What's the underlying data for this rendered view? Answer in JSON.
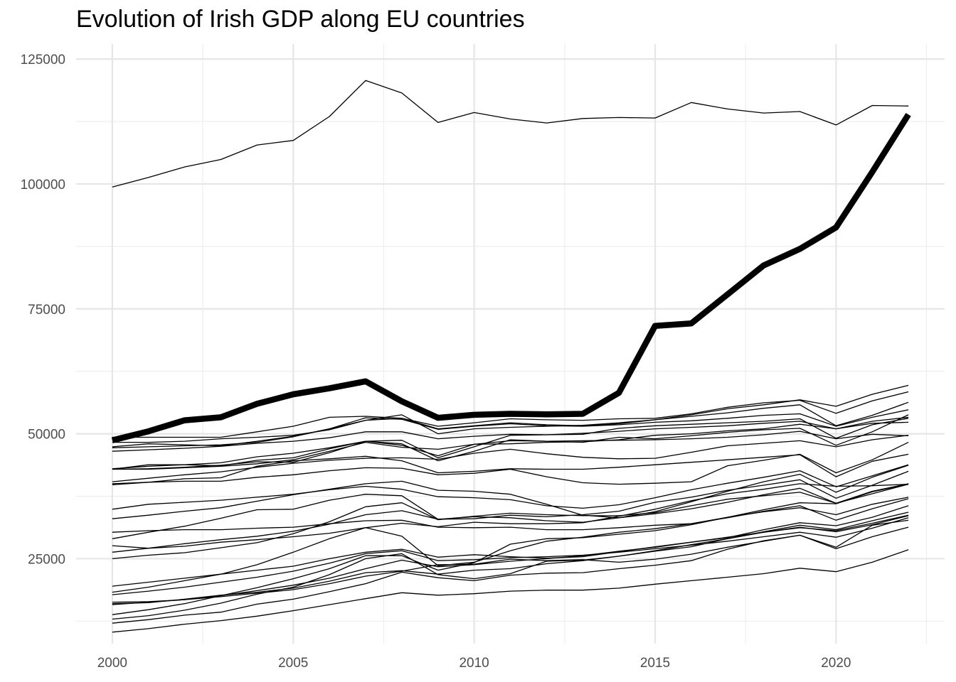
{
  "chart_data": {
    "type": "line",
    "title": "Evolution of Irish GDP along EU countries",
    "xlabel": "",
    "ylabel": "",
    "xlim": [
      1999,
      2023
    ],
    "ylim": [
      8000,
      128000
    ],
    "x_ticks": [
      2000,
      2005,
      2010,
      2015,
      2020
    ],
    "y_ticks": [
      25000,
      50000,
      75000,
      100000,
      125000
    ],
    "grid": true,
    "legend": "none",
    "line_color": "#000000",
    "x": [
      2000,
      2001,
      2002,
      2003,
      2004,
      2005,
      2006,
      2007,
      2008,
      2009,
      2010,
      2011,
      2012,
      2013,
      2014,
      2015,
      2016,
      2017,
      2018,
      2019,
      2020,
      2021,
      2022
    ],
    "highlight_series": {
      "values": [
        48700,
        50500,
        52700,
        53300,
        56000,
        57900,
        59100,
        60500,
        56500,
        53200,
        53800,
        54000,
        53900,
        54000,
        58200,
        71600,
        72100,
        77900,
        83700,
        87000,
        91300,
        102400,
        113900
      ]
    },
    "series": [
      {
        "values": [
          99400,
          101300,
          103400,
          104900,
          107800,
          108700,
          113500,
          120700,
          118200,
          112300,
          114300,
          113000,
          112200,
          113100,
          113300,
          113200,
          116300,
          115000,
          114200,
          114500,
          111800,
          115700,
          115600
        ]
      },
      {
        "values": [
          49300,
          49300,
          49300,
          49300,
          50400,
          51500,
          53300,
          53500,
          53100,
          51000,
          51600,
          52200,
          51800,
          51600,
          52000,
          52800,
          53800,
          55000,
          55800,
          56800,
          55500,
          57900,
          59700
        ]
      },
      {
        "values": [
          48300,
          48300,
          48500,
          49000,
          49300,
          49700,
          50800,
          52700,
          53100,
          51500,
          52200,
          53000,
          52800,
          52700,
          53000,
          53100,
          54000,
          55300,
          56200,
          56700,
          54100,
          56600,
          58400
        ]
      },
      {
        "values": [
          47400,
          48000,
          47800,
          47600,
          48500,
          49500,
          51000,
          52700,
          53800,
          50000,
          51000,
          51300,
          51500,
          51700,
          52200,
          52800,
          53500,
          54200,
          55100,
          55800,
          51600,
          53700,
          56300
        ]
      },
      {
        "values": [
          47200,
          47400,
          47600,
          47800,
          48300,
          49400,
          51000,
          53200,
          52900,
          50900,
          51500,
          52000,
          51600,
          51500,
          51800,
          52300,
          52600,
          53100,
          53700,
          54000,
          51500,
          53300,
          54800
        ]
      },
      {
        "values": [
          46500,
          46800,
          47100,
          47500,
          48100,
          48500,
          49200,
          50400,
          50400,
          49000,
          49500,
          49900,
          49800,
          50100,
          50500,
          51000,
          51300,
          51600,
          52100,
          52500,
          51000,
          52500,
          53300
        ]
      },
      {
        "values": [
          43000,
          43500,
          43800,
          44200,
          45400,
          46100,
          47200,
          48500,
          48700,
          45200,
          47400,
          49700,
          49800,
          49900,
          51100,
          51600,
          51900,
          52200,
          52500,
          53000,
          49100,
          51800,
          53100
        ]
      },
      {
        "values": [
          42900,
          43800,
          43800,
          43600,
          44700,
          45200,
          47000,
          48500,
          47700,
          45600,
          47900,
          48000,
          48300,
          48400,
          48800,
          49700,
          50000,
          50600,
          51000,
          51900,
          51000,
          52100,
          52300
        ]
      },
      {
        "values": [
          42900,
          43000,
          43300,
          43700,
          44400,
          44300,
          46200,
          48500,
          48000,
          44600,
          46500,
          48800,
          48500,
          48300,
          49300,
          49000,
          49600,
          50300,
          50800,
          51100,
          47700,
          50400,
          53800
        ]
      },
      {
        "values": [
          42900,
          42900,
          43200,
          43500,
          44000,
          44800,
          46500,
          48300,
          47300,
          46900,
          47900,
          48600,
          48500,
          48600,
          48700,
          48800,
          49000,
          49300,
          49800,
          50500,
          49000,
          49900,
          49600
        ]
      },
      {
        "values": [
          40000,
          40300,
          41000,
          41200,
          43500,
          44600,
          45000,
          45500,
          44600,
          42200,
          42500,
          43000,
          42900,
          42900,
          43300,
          43800,
          44300,
          44800,
          45300,
          45800,
          41400,
          44500,
          45900
        ]
      },
      {
        "values": [
          40400,
          41100,
          41800,
          42400,
          43300,
          44100,
          44700,
          45100,
          45200,
          44900,
          46100,
          46900,
          46000,
          45300,
          45000,
          45100,
          46300,
          47600,
          48100,
          48600,
          47400,
          48800,
          49700
        ]
      },
      {
        "values": [
          39800,
          40300,
          40500,
          40500,
          41300,
          41800,
          42600,
          43200,
          43100,
          41800,
          42100,
          42900,
          41400,
          40200,
          39900,
          40100,
          40400,
          43600,
          44700,
          45900,
          42200,
          44800,
          48300
        ]
      },
      {
        "values": [
          34900,
          35900,
          36300,
          36700,
          37300,
          37900,
          38800,
          39500,
          38900,
          37400,
          37200,
          36800,
          35600,
          35100,
          35800,
          37200,
          38800,
          40100,
          41300,
          42600,
          39400,
          41600,
          43800
        ]
      },
      {
        "values": [
          33000,
          33700,
          34500,
          35200,
          36500,
          37800,
          38900,
          40000,
          40500,
          38700,
          38500,
          37900,
          35900,
          33700,
          33200,
          34400,
          36400,
          38500,
          40400,
          41900,
          38300,
          41300,
          43700
        ]
      },
      {
        "values": [
          30300,
          30600,
          30800,
          30800,
          31100,
          31300,
          32000,
          32600,
          32700,
          31300,
          31200,
          31300,
          30800,
          30800,
          31200,
          31700,
          32000,
          33300,
          34800,
          36200,
          36000,
          38400,
          39900
        ]
      },
      {
        "values": [
          29000,
          30300,
          31500,
          33100,
          34800,
          34900,
          36700,
          37900,
          37600,
          32900,
          33000,
          33700,
          33400,
          33800,
          34500,
          36300,
          37300,
          38700,
          39700,
          40800,
          37100,
          39700,
          42500
        ]
      },
      {
        "values": [
          27600,
          27100,
          27500,
          28300,
          28800,
          29400,
          30100,
          31200,
          32100,
          31400,
          32300,
          32000,
          32000,
          32200,
          33500,
          34900,
          36600,
          38000,
          38900,
          40000,
          39500,
          39600,
          39900
        ]
      },
      {
        "values": [
          26300,
          27100,
          28000,
          28800,
          29500,
          30500,
          31900,
          33800,
          34600,
          32900,
          33400,
          33200,
          32600,
          32300,
          33200,
          34000,
          35000,
          36300,
          37800,
          39100,
          36100,
          38000,
          39900
        ]
      },
      {
        "values": [
          25000,
          25700,
          26200,
          27200,
          28200,
          30000,
          32400,
          35400,
          36200,
          32800,
          33500,
          34100,
          33800,
          33600,
          33600,
          34200,
          35600,
          36900,
          37600,
          38300,
          36100,
          38500,
          40000
        ]
      },
      {
        "values": [
          19500,
          20300,
          21100,
          21900,
          22700,
          23500,
          25000,
          26300,
          26900,
          25300,
          25800,
          25400,
          25100,
          25400,
          26400,
          27400,
          28300,
          29200,
          30800,
          32200,
          31600,
          33300,
          35600
        ]
      },
      {
        "values": [
          18300,
          19300,
          20600,
          21900,
          23800,
          26300,
          29000,
          31200,
          29500,
          23600,
          24300,
          26600,
          28500,
          29300,
          30300,
          31000,
          32000,
          33200,
          34500,
          35600,
          32700,
          35000,
          37000
        ]
      },
      {
        "values": [
          17800,
          18500,
          19300,
          20300,
          21300,
          22500,
          24100,
          26000,
          26600,
          24600,
          24800,
          25200,
          25400,
          25700,
          26300,
          27000,
          27700,
          28500,
          29400,
          30300,
          29300,
          31100,
          33200
        ]
      },
      {
        "values": [
          16300,
          16400,
          16800,
          17600,
          18600,
          19700,
          21100,
          23000,
          24700,
          23400,
          23800,
          24500,
          25000,
          25600,
          26500,
          27300,
          28300,
          29300,
          30300,
          31200,
          30600,
          32100,
          33700
        ]
      },
      {
        "values": [
          16000,
          16200,
          16900,
          17700,
          18300,
          19100,
          20500,
          22200,
          22600,
          21900,
          22700,
          23000,
          24000,
          24600,
          25500,
          26600,
          27800,
          29000,
          30400,
          31700,
          30800,
          32600,
          34300
        ]
      },
      {
        "values": [
          13800,
          14800,
          16000,
          17600,
          19200,
          21000,
          23000,
          25600,
          25600,
          22700,
          24200,
          27900,
          29000,
          29200,
          29900,
          30600,
          31800,
          33300,
          34400,
          35200,
          33800,
          35900,
          37300
        ]
      },
      {
        "values": [
          12900,
          13600,
          14700,
          16100,
          17900,
          19300,
          21800,
          25000,
          26000,
          21800,
          21000,
          22000,
          24500,
          24700,
          25500,
          26500,
          27400,
          29000,
          30300,
          31300,
          30400,
          31800,
          33600
        ]
      },
      {
        "values": [
          12100,
          12800,
          13700,
          14300,
          15900,
          16900,
          18400,
          20000,
          22300,
          21200,
          20600,
          21700,
          22100,
          22200,
          23000,
          23700,
          24600,
          26900,
          28600,
          29700,
          27300,
          31700,
          32700
        ]
      },
      {
        "values": [
          10300,
          11000,
          11900,
          12600,
          13500,
          14600,
          15800,
          17000,
          18200,
          17700,
          18000,
          18500,
          18700,
          18700,
          19100,
          19900,
          20600,
          21300,
          22000,
          23100,
          22400,
          24300,
          26800
        ]
      },
      {
        "values": [
          15800,
          16300,
          16800,
          17400,
          18100,
          18800,
          20000,
          21500,
          22500,
          23800,
          23900,
          24900,
          24600,
          24800,
          24300,
          24900,
          25900,
          27300,
          28500,
          29700,
          27000,
          29400,
          31300
        ]
      }
    ]
  }
}
